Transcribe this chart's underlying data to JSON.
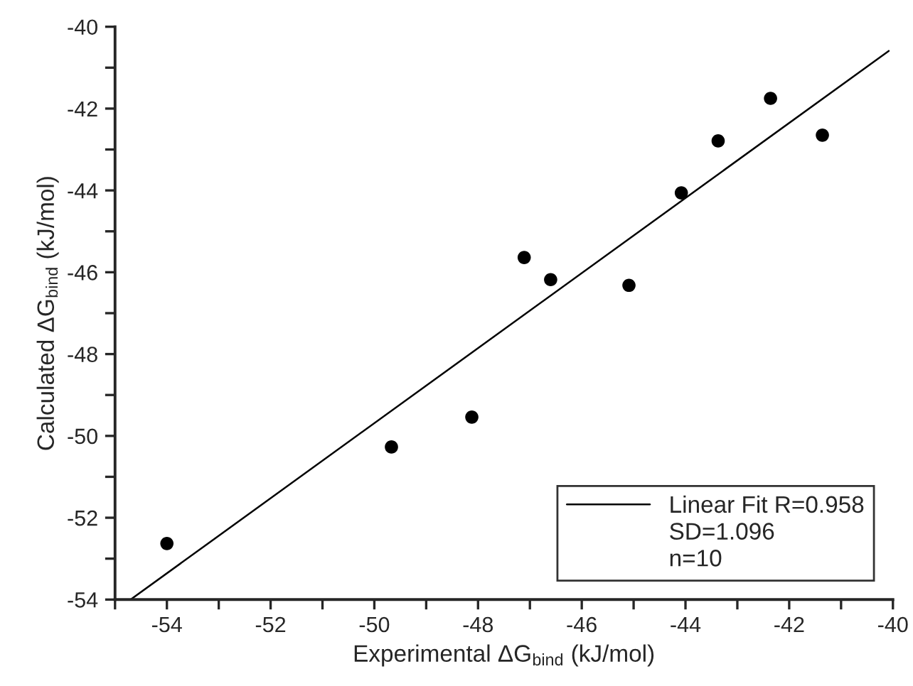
{
  "chart_data": {
    "type": "scatter",
    "xlabel": "Experimental ΔG$_{bind}$ (kJ/mol)",
    "ylabel": "Calculated ΔG$_{bind}$ (kJ/mol)",
    "series": [
      {
        "color": "#000000",
        "marker": "circle",
        "x": [
          -54.0,
          -49.67,
          -48.12,
          -47.11,
          -46.6,
          -45.09,
          -44.08,
          -43.37,
          -42.36,
          -41.36
        ],
        "values": [
          -52.63,
          -50.27,
          -49.54,
          -45.64,
          -46.18,
          -46.32,
          -44.06,
          -42.79,
          -41.75,
          -42.65
        ]
      },
      {
        "type": "line",
        "name": "Linear Fit R=0.958",
        "color": "#000000",
        "line_style": "solid",
        "x": [
          -54.7,
          -40.08
        ],
        "values": [
          -54.0,
          -40.59
        ]
      }
    ],
    "annotations": [
      "SD=1.096",
      "n=10"
    ],
    "xlim": [
      -55,
      -40
    ],
    "ylim": [
      -54,
      -40
    ],
    "xticks": [
      {
        "value": -55,
        "label": null
      },
      -54,
      {
        "value": -53,
        "label": null
      },
      -52,
      {
        "value": -51,
        "label": null
      },
      -50,
      {
        "value": -49,
        "label": null
      },
      -48,
      {
        "value": -47,
        "label": null
      },
      -46,
      {
        "value": -45,
        "label": null
      },
      -44,
      {
        "value": -43,
        "label": null
      },
      -42,
      {
        "value": -41,
        "label": null
      },
      -40
    ],
    "yticks": [
      -54,
      {
        "value": -53,
        "label": null
      },
      -52,
      {
        "value": -51,
        "label": null
      },
      -50,
      {
        "value": -49,
        "label": null
      },
      -48,
      {
        "value": -47,
        "label": null
      },
      -46,
      {
        "value": -45,
        "label": null
      },
      -44,
      {
        "value": -43,
        "label": null
      },
      -42,
      {
        "value": -41,
        "label": null
      },
      -40
    ],
    "legend": "bottom right",
    "grid": false
  }
}
